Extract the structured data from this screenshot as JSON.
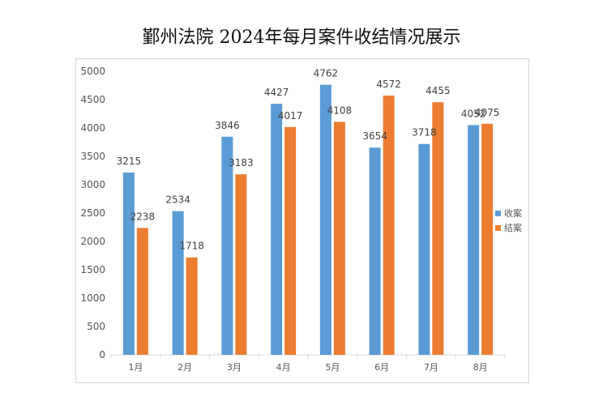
{
  "chart_data": {
    "type": "bar",
    "title": "鄞州法院 2024年每月案件收结情况展示",
    "categories": [
      "1月",
      "2月",
      "3月",
      "4月",
      "5月",
      "6月",
      "7月",
      "8月"
    ],
    "series": [
      {
        "name": "收案",
        "color": "#5b9bd5",
        "values": [
          3215,
          2534,
          3846,
          4427,
          4762,
          3654,
          3718,
          4052
        ]
      },
      {
        "name": "结案",
        "color": "#ed7d31",
        "values": [
          2238,
          1718,
          3183,
          4017,
          4108,
          4572,
          4455,
          4075
        ]
      }
    ],
    "ylim": [
      0,
      5000
    ],
    "yticks": [
      0,
      500,
      1000,
      1500,
      2000,
      2500,
      3000,
      3500,
      4000,
      4500,
      5000
    ],
    "xlabel": "",
    "ylabel": "",
    "grid": false,
    "legend_position": "right"
  }
}
